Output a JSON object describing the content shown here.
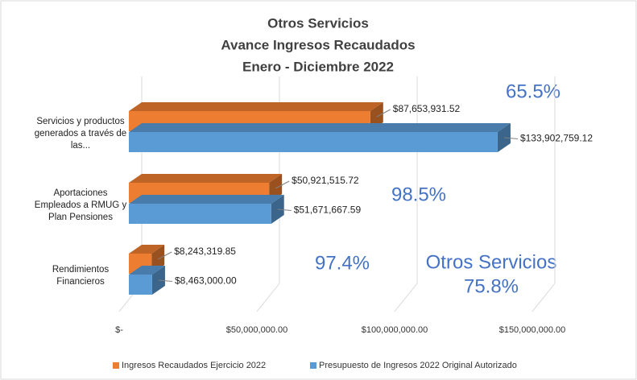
{
  "chart_data": {
    "type": "bar3d-horizontal",
    "title": "Otros Servicios",
    "subtitle": [
      "Avance Ingresos Recaudados",
      "Enero - Diciembre 2022"
    ],
    "categories": [
      "Servicios y productos generados a través de las...",
      "Aportaciones Empleados a RMUG y Plan Pensiones",
      "Rendimientos Financieros"
    ],
    "series": [
      {
        "name": "Ingresos Recaudados Ejercicio 2022",
        "color": "#ed7d31",
        "values": [
          87653931.52,
          50921515.72,
          8243319.85
        ],
        "value_labels": [
          "$87,653,931.52",
          "$50,921,515.72",
          "$8,243,319.85"
        ]
      },
      {
        "name": "Presupuesto de Ingresos 2022 Original Autorizado",
        "color": "#5b9bd5",
        "values": [
          133902759.12,
          51671667.59,
          8463000.0
        ],
        "value_labels": [
          "$133,902,759.12",
          "$51,671,667.59",
          "$8,463,000.00"
        ]
      }
    ],
    "xlim": [
      0,
      150000000
    ],
    "xticks": [
      {
        "value": 0,
        "label": "$-"
      },
      {
        "value": 50000000,
        "label": "$50,000,000.00"
      },
      {
        "value": 100000000,
        "label": "$100,000,000.00"
      },
      {
        "value": 150000000,
        "label": "$150,000,000.00"
      }
    ],
    "grid": true,
    "legend": "bottom",
    "annotations": [
      "65.5%",
      "98.5%",
      "97.4%",
      "Otros Servicios",
      "75.8%"
    ]
  }
}
